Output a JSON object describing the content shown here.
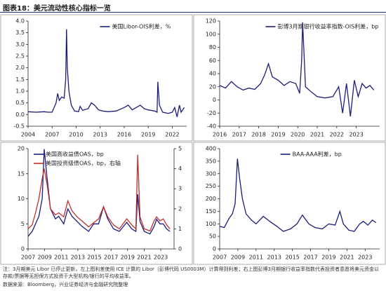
{
  "title": "图表18：美元流动性核心指标一览",
  "note": "注：3月期美元 Libor 已停止更新，左上图利差使用 ICE 计算的 Libor（彭博代码 US0003M）计算得到利差；右上图彭博3月期银行收益率指数代表投资者意愿将美元资金以存款/票据等无担保方式投资于大型机构/银行的平均收益率。",
  "source": "数据来源：Bloomberg，兴业证券经济与金融研究院整理",
  "chart_data": [
    {
      "type": "line",
      "legend": "upper right",
      "x": [
        2004,
        2004.5,
        2005,
        2005.5,
        2006,
        2006.5,
        2007,
        2007.5,
        2007.7,
        2007.9,
        2008.2,
        2008.5,
        2008.7,
        2008.8,
        2008.9,
        2009.1,
        2009.4,
        2009.8,
        2010.3,
        2010.5,
        2010.8,
        2011.5,
        2011.9,
        2012.3,
        2012.8,
        2013.3,
        2014,
        2015,
        2016,
        2016.5,
        2017,
        2018,
        2018.5,
        2019,
        2019.8,
        2020.1,
        2020.2,
        2020.4,
        2020.8,
        2021.5,
        2022,
        2022.3,
        2022.6,
        2022.9,
        2023.1,
        2023.3,
        2023.5
      ],
      "series": [
        {
          "name": "美国Libor-OIS利差，%",
          "color": "#1c1c7c",
          "values": [
            0.12,
            0.11,
            0.1,
            0.11,
            0.12,
            0.1,
            0.1,
            0.5,
            0.9,
            0.6,
            0.75,
            0.7,
            1.5,
            3.65,
            2.0,
            1.0,
            0.4,
            0.15,
            0.12,
            0.35,
            0.18,
            0.25,
            0.5,
            0.4,
            0.2,
            0.15,
            0.12,
            0.15,
            0.3,
            0.4,
            0.2,
            0.4,
            0.25,
            0.2,
            0.15,
            0.1,
            1.4,
            0.4,
            0.1,
            0.05,
            0.1,
            0.3,
            -0.1,
            0.4,
            0.1,
            0.2,
            0.3
          ]
        }
      ],
      "xlim": [
        2004,
        2023.8
      ],
      "xticks": [
        2004,
        2007,
        2010,
        2013,
        2016,
        2019,
        2022
      ],
      "ylim": [
        -0.5,
        4.0
      ],
      "yticks": [
        -0.5,
        {
          "value": 0,
          "label": "0.0"
        },
        0.5,
        {
          "value": 1,
          "label": "1.0"
        },
        1.5,
        {
          "value": 2,
          "label": "2.0"
        },
        2.5,
        {
          "value": 3,
          "label": "3.0"
        },
        3.5,
        {
          "value": 4,
          "label": "4.0"
        }
      ]
    },
    {
      "type": "line",
      "legend": "upper right",
      "x": [
        2016,
        2016.3,
        2016.6,
        2016.9,
        2017.2,
        2017.5,
        2017.8,
        2018.1,
        2018.3,
        2018.5,
        2018.7,
        2019,
        2019.3,
        2019.6,
        2019.9,
        2020.1,
        2020.2,
        2020.25,
        2020.4,
        2020.7,
        2021,
        2021.4,
        2021.8,
        2022.1,
        2022.3,
        2022.5,
        2022.7,
        2022.9,
        2023.1,
        2023.3,
        2023.5,
        2023.7,
        2023.9
      ],
      "series": [
        {
          "name": "彭博3月期银行收益率指数-OIS利差，bp",
          "color": "#1c1c7c",
          "values": [
            22,
            18,
            28,
            20,
            15,
            18,
            16,
            25,
            38,
            55,
            35,
            30,
            22,
            28,
            25,
            10,
            60,
            118,
            20,
            12,
            5,
            3,
            5,
            20,
            -20,
            25,
            -25,
            30,
            5,
            25,
            18,
            22,
            15
          ]
        }
      ],
      "xlim": [
        2016,
        2024.2
      ],
      "xticks": [
        2016,
        2017,
        2018,
        2019,
        2020,
        2021,
        2022,
        2023
      ],
      "ylim": [
        -40,
        120
      ],
      "yticks": [
        -40,
        -20,
        0,
        20,
        40,
        60,
        80,
        100,
        120
      ]
    },
    {
      "type": "line",
      "legend": "upper left",
      "x": [
        2007,
        2007.5,
        2007.9,
        2008.3,
        2008.7,
        2008.95,
        2009.3,
        2009.7,
        2010.3,
        2010.7,
        2011.3,
        2011.8,
        2012.3,
        2012.9,
        2013.5,
        2014.3,
        2014.9,
        2015.5,
        2016.1,
        2016.6,
        2017.3,
        2018,
        2018.9,
        2019.5,
        2020,
        2020.22,
        2020.5,
        2021,
        2021.7,
        2022.2,
        2022.5,
        2022.9,
        2023.3,
        2023.7,
        2024.1
      ],
      "series": [
        {
          "name": "美国高收益债OAS，bp",
          "color": "#1c1c7c",
          "values": [
            2.5,
            3.5,
            5,
            6.5,
            10,
            19.9,
            14,
            8,
            6,
            6.5,
            5,
            8,
            6.5,
            5.5,
            4.5,
            3.5,
            5,
            5,
            8.4,
            6,
            4,
            3.5,
            5.3,
            4,
            3.5,
            10.9,
            5.5,
            3.5,
            3,
            4.5,
            5.9,
            5,
            5,
            4,
            3.5
          ]
        },
        {
          "name": "美国投资级债OAS，bp，右轴",
          "color": "#c0312b",
          "axis": "y2",
          "values": [
            1.0,
            1.2,
            1.8,
            2.5,
            3.5,
            4.0,
            3.2,
            2.0,
            1.7,
            1.8,
            1.6,
            2.4,
            1.9,
            1.6,
            1.4,
            1.1,
            1.3,
            1.5,
            2.1,
            1.6,
            1.2,
            1.0,
            1.5,
            1.2,
            1.0,
            4.7,
            1.6,
            1.0,
            0.9,
            1.4,
            1.6,
            1.4,
            1.5,
            1.2,
            1.0
          ]
        }
      ],
      "xlim": [
        2007,
        2024.6
      ],
      "xticks": [
        2007,
        2009,
        2011,
        2013,
        2015,
        2017,
        2019,
        2021,
        2023
      ],
      "ylim": [
        0,
        20
      ],
      "yticks": [
        0,
        5,
        10,
        15,
        20
      ],
      "y2lim": [
        0,
        5
      ],
      "y2ticks": [
        0,
        1,
        2,
        3,
        4,
        5
      ]
    },
    {
      "type": "line",
      "legend": "upper center",
      "x": [
        2007,
        2007.5,
        2008,
        2008.4,
        2008.7,
        2008.95,
        2009.2,
        2009.5,
        2009.9,
        2010.5,
        2011,
        2011.8,
        2012.5,
        2013.3,
        2014,
        2014.8,
        2015.5,
        2016.1,
        2016.8,
        2017.5,
        2018.3,
        2019,
        2019.7,
        2020.22,
        2020.6,
        2021.2,
        2021.8,
        2022.4,
        2022.8,
        2023.3,
        2023.8,
        2024.2
      ],
      "series": [
        {
          "name": "BAA-AAA利差，bp",
          "color": "#1c1c7c",
          "values": [
            90,
            85,
            120,
            140,
            180,
            360,
            280,
            200,
            140,
            115,
            100,
            130,
            110,
            90,
            70,
            80,
            100,
            135,
            100,
            85,
            80,
            100,
            95,
            150,
            100,
            75,
            70,
            100,
            110,
            95,
            115,
            105
          ]
        }
      ],
      "xlim": [
        2007,
        2024.6
      ],
      "xticks": [
        2007,
        2009,
        2011,
        2013,
        2015,
        2017,
        2019,
        2021,
        2023
      ],
      "ylim": [
        0,
        400
      ],
      "yticks": [
        0,
        50,
        100,
        150,
        200,
        250,
        300,
        350,
        400
      ]
    }
  ]
}
